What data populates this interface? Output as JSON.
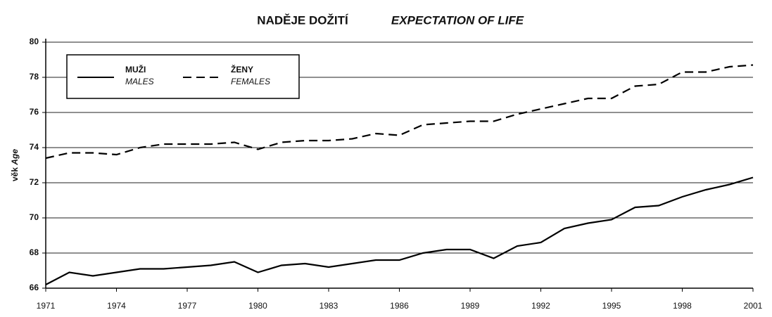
{
  "chart_data": {
    "type": "line",
    "title": "NADĚJE DOŽITÍ",
    "title_en": "EXPECTATION OF LIFE",
    "y_label": "věk",
    "y_label_en": "Age",
    "x": [
      1971,
      1972,
      1973,
      1974,
      1975,
      1976,
      1977,
      1978,
      1979,
      1980,
      1981,
      1982,
      1983,
      1984,
      1985,
      1986,
      1987,
      1988,
      1989,
      1990,
      1991,
      1992,
      1993,
      1994,
      1995,
      1996,
      1997,
      1998,
      1999,
      2000,
      2001
    ],
    "series": [
      {
        "name": "MUŽI",
        "name_en": "MALES",
        "color": "#000000",
        "line_style": "solid",
        "values": [
          66.2,
          66.9,
          66.7,
          66.9,
          67.1,
          67.1,
          67.2,
          67.3,
          67.5,
          66.9,
          67.3,
          67.4,
          67.2,
          67.4,
          67.6,
          67.6,
          68.0,
          68.2,
          68.2,
          67.7,
          68.4,
          68.6,
          69.4,
          69.7,
          69.9,
          70.6,
          70.7,
          71.2,
          71.6,
          71.9,
          72.3
        ]
      },
      {
        "name": "ŽENY",
        "name_en": "FEMALES",
        "color": "#000000",
        "line_style": "dashed",
        "values": [
          73.4,
          73.7,
          73.7,
          73.6,
          74.0,
          74.2,
          74.2,
          74.2,
          74.3,
          73.9,
          74.3,
          74.4,
          74.4,
          74.5,
          74.8,
          74.7,
          75.3,
          75.4,
          75.5,
          75.5,
          75.9,
          76.2,
          76.5,
          76.8,
          76.8,
          77.5,
          77.6,
          78.3,
          78.3,
          78.6,
          78.7
        ]
      }
    ],
    "xlim": [
      1971,
      2001
    ],
    "xticks": [
      1971,
      1974,
      1977,
      1980,
      1983,
      1986,
      1989,
      1992,
      1995,
      1998,
      2001
    ],
    "ylim": [
      66,
      80
    ],
    "yticks": [
      66,
      68,
      70,
      72,
      74,
      76,
      78,
      80
    ],
    "grid": true,
    "legend": "upper left"
  }
}
